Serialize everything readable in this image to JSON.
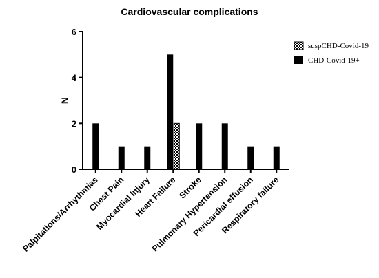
{
  "chart_data": {
    "type": "bar",
    "title": "Cardiovascular complications",
    "ylabel": "N",
    "xlabel": "",
    "ylim": [
      0,
      6
    ],
    "yticks": [
      0,
      2,
      4,
      6
    ],
    "categories": [
      "Palpitations/Arrhythmias",
      "Chest Pain",
      "Myocardial Injury",
      "Heart Failure",
      "Stroke",
      "Pulmonary Hypertension",
      "Pericardial effusion",
      "Respiratory failure"
    ],
    "series": [
      {
        "name": "CHD-Covid-19+",
        "fill": "solid",
        "color": "#000000",
        "values": [
          2,
          1,
          1,
          5,
          2,
          2,
          1,
          1
        ]
      },
      {
        "name": "suspCHD-Covid-19",
        "fill": "checkered",
        "color": "#000000",
        "values": [
          0,
          0,
          0,
          2,
          0,
          0,
          0,
          0
        ]
      }
    ],
    "legend": {
      "placement": "top-right",
      "entries": [
        "suspCHD-Covid-19",
        "CHD-Covid-19+"
      ]
    }
  }
}
